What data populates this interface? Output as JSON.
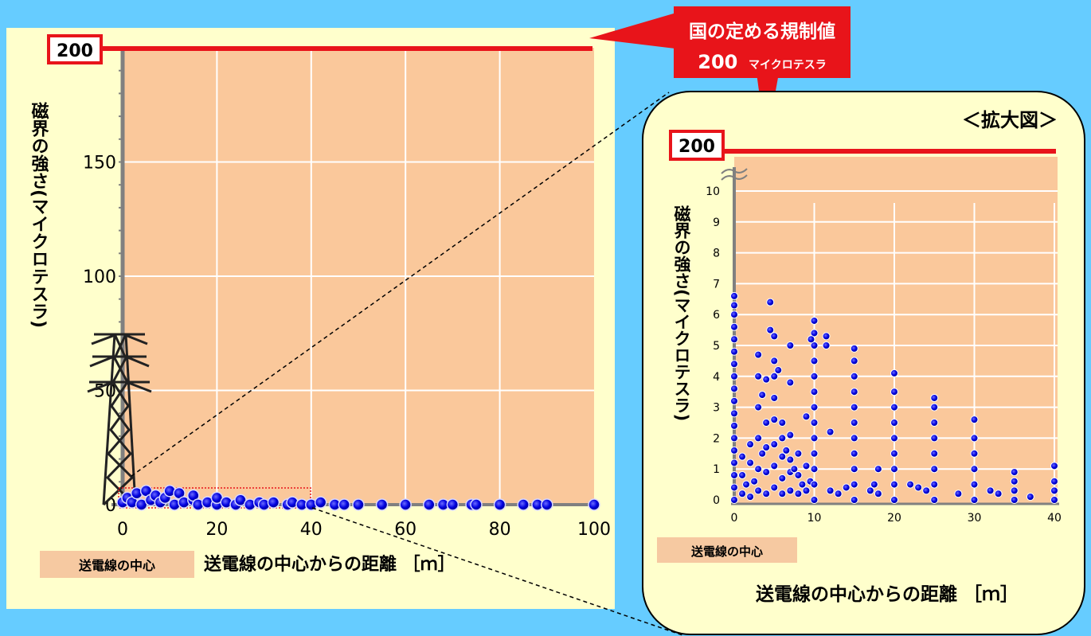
{
  "colors": {
    "background": "#66ccff",
    "panel": "#ffffcc",
    "plot_area": "#fac89b",
    "limit_line": "#e8141a",
    "point": "#0000e0",
    "callout": "#e8141a",
    "center_label_bg": "#f6c9a1"
  },
  "callout": {
    "line1": "国の定める規制値",
    "line2_value": "200",
    "line2_unit": "マイクロテスラ"
  },
  "center_label": "送電線の中心",
  "chart_data": [
    {
      "type": "scatter",
      "panel": "main",
      "title": "",
      "xlabel": "送電線の中心からの距離 ［ｍ］",
      "ylabel": "磁界の強さ(マイクロテスラ)",
      "xlim": [
        0,
        100
      ],
      "ylim": [
        0,
        200
      ],
      "x_ticks": [
        "0",
        "20",
        "40",
        "60",
        "80",
        "100"
      ],
      "y_ticks": [
        "0",
        "50",
        "100",
        "150",
        "200"
      ],
      "limit_value": 200,
      "limit_label": "200",
      "icons": [
        "transmission-tower-icon"
      ],
      "points": [
        {
          "x": 0,
          "y": 1
        },
        {
          "x": 1,
          "y": 3
        },
        {
          "x": 2,
          "y": 1
        },
        {
          "x": 3,
          "y": 5
        },
        {
          "x": 4,
          "y": 0
        },
        {
          "x": 5,
          "y": 6
        },
        {
          "x": 6,
          "y": 2
        },
        {
          "x": 7,
          "y": 4
        },
        {
          "x": 8,
          "y": 1
        },
        {
          "x": 9,
          "y": 3
        },
        {
          "x": 10,
          "y": 6
        },
        {
          "x": 11,
          "y": 0
        },
        {
          "x": 12,
          "y": 5
        },
        {
          "x": 13,
          "y": 1
        },
        {
          "x": 15,
          "y": 2
        },
        {
          "x": 15,
          "y": 4
        },
        {
          "x": 16,
          "y": 0
        },
        {
          "x": 18,
          "y": 1
        },
        {
          "x": 20,
          "y": 0
        },
        {
          "x": 20,
          "y": 3
        },
        {
          "x": 22,
          "y": 1
        },
        {
          "x": 24,
          "y": 0
        },
        {
          "x": 25,
          "y": 2
        },
        {
          "x": 27,
          "y": 0
        },
        {
          "x": 29,
          "y": 1
        },
        {
          "x": 30,
          "y": 0
        },
        {
          "x": 32,
          "y": 1
        },
        {
          "x": 35,
          "y": 0
        },
        {
          "x": 36,
          "y": 1
        },
        {
          "x": 38,
          "y": 0
        },
        {
          "x": 40,
          "y": 0
        },
        {
          "x": 42,
          "y": 1
        },
        {
          "x": 45,
          "y": 0
        },
        {
          "x": 47,
          "y": 0
        },
        {
          "x": 50,
          "y": 0
        },
        {
          "x": 55,
          "y": 0
        },
        {
          "x": 60,
          "y": 0
        },
        {
          "x": 65,
          "y": 0
        },
        {
          "x": 68,
          "y": 0
        },
        {
          "x": 70,
          "y": 0
        },
        {
          "x": 74,
          "y": 0
        },
        {
          "x": 75,
          "y": 0
        },
        {
          "x": 80,
          "y": 0
        },
        {
          "x": 85,
          "y": 0
        },
        {
          "x": 88,
          "y": 0
        },
        {
          "x": 90,
          "y": 0
        },
        {
          "x": 100,
          "y": 0
        }
      ]
    },
    {
      "type": "scatter",
      "panel": "zoom",
      "title": "＜拡大図＞",
      "xlabel": "送電線の中心からの距離 ［ｍ］",
      "ylabel": "磁界の強さ(マイクロテスラ)",
      "xlim": [
        0,
        40
      ],
      "ylim": [
        0,
        10
      ],
      "x_ticks": [
        "0",
        "10",
        "20",
        "30",
        "40"
      ],
      "y_ticks": [
        "0",
        "1",
        "2",
        "3",
        "4",
        "5",
        "6",
        "7",
        "8",
        "9",
        "10"
      ],
      "limit_value": 200,
      "limit_label": "200",
      "axis_break": true,
      "points": [
        {
          "x": 0,
          "y": 0
        },
        {
          "x": 0,
          "y": 0.4
        },
        {
          "x": 0,
          "y": 0.8
        },
        {
          "x": 0,
          "y": 1.2
        },
        {
          "x": 0,
          "y": 1.6
        },
        {
          "x": 0,
          "y": 2.0
        },
        {
          "x": 0,
          "y": 2.4
        },
        {
          "x": 0,
          "y": 2.8
        },
        {
          "x": 0,
          "y": 3.2
        },
        {
          "x": 0,
          "y": 3.6
        },
        {
          "x": 0,
          "y": 4.0
        },
        {
          "x": 0,
          "y": 4.4
        },
        {
          "x": 0,
          "y": 4.8
        },
        {
          "x": 0,
          "y": 5.2
        },
        {
          "x": 0,
          "y": 5.6
        },
        {
          "x": 0,
          "y": 6.0
        },
        {
          "x": 0,
          "y": 6.3
        },
        {
          "x": 0,
          "y": 6.6
        },
        {
          "x": 1,
          "y": 0.2
        },
        {
          "x": 1,
          "y": 0.8
        },
        {
          "x": 1,
          "y": 1.4
        },
        {
          "x": 1.5,
          "y": 0.5
        },
        {
          "x": 2,
          "y": 0.1
        },
        {
          "x": 2,
          "y": 1.2
        },
        {
          "x": 2,
          "y": 1.8
        },
        {
          "x": 2.5,
          "y": 0.6
        },
        {
          "x": 3,
          "y": 0.3
        },
        {
          "x": 3,
          "y": 1.0
        },
        {
          "x": 3,
          "y": 2.0
        },
        {
          "x": 3,
          "y": 3.0
        },
        {
          "x": 3,
          "y": 4.0
        },
        {
          "x": 3,
          "y": 4.7
        },
        {
          "x": 3.5,
          "y": 1.5
        },
        {
          "x": 3.5,
          "y": 3.4
        },
        {
          "x": 4,
          "y": 0.2
        },
        {
          "x": 4,
          "y": 0.9
        },
        {
          "x": 4,
          "y": 1.7
        },
        {
          "x": 4,
          "y": 2.5
        },
        {
          "x": 4,
          "y": 3.9
        },
        {
          "x": 4.5,
          "y": 6.4
        },
        {
          "x": 4.5,
          "y": 5.5
        },
        {
          "x": 5,
          "y": 0.4
        },
        {
          "x": 5,
          "y": 1.1
        },
        {
          "x": 5,
          "y": 1.8
        },
        {
          "x": 5,
          "y": 2.6
        },
        {
          "x": 5,
          "y": 3.3
        },
        {
          "x": 5,
          "y": 4.0
        },
        {
          "x": 5,
          "y": 4.5
        },
        {
          "x": 5,
          "y": 5.3
        },
        {
          "x": 5.5,
          "y": 4.2
        },
        {
          "x": 6,
          "y": 0.2
        },
        {
          "x": 6,
          "y": 0.7
        },
        {
          "x": 6,
          "y": 1.4
        },
        {
          "x": 6,
          "y": 2.0
        },
        {
          "x": 6,
          "y": 2.5
        },
        {
          "x": 6.5,
          "y": 1.6
        },
        {
          "x": 7,
          "y": 0.3
        },
        {
          "x": 7,
          "y": 0.9
        },
        {
          "x": 7,
          "y": 1.3
        },
        {
          "x": 7,
          "y": 2.1
        },
        {
          "x": 7,
          "y": 3.8
        },
        {
          "x": 7,
          "y": 5.0
        },
        {
          "x": 7.5,
          "y": 1.0
        },
        {
          "x": 8,
          "y": 0.2
        },
        {
          "x": 8,
          "y": 0.8
        },
        {
          "x": 8,
          "y": 1.5
        },
        {
          "x": 8.5,
          "y": 0.5
        },
        {
          "x": 9,
          "y": 0.3
        },
        {
          "x": 9,
          "y": 1.1
        },
        {
          "x": 9,
          "y": 2.7
        },
        {
          "x": 9.5,
          "y": 0.6
        },
        {
          "x": 10,
          "y": 0
        },
        {
          "x": 10,
          "y": 0.5
        },
        {
          "x": 10,
          "y": 1.0
        },
        {
          "x": 10,
          "y": 1.5
        },
        {
          "x": 10,
          "y": 2.0
        },
        {
          "x": 10,
          "y": 2.5
        },
        {
          "x": 10,
          "y": 3.0
        },
        {
          "x": 10,
          "y": 3.5
        },
        {
          "x": 10,
          "y": 4.0
        },
        {
          "x": 10,
          "y": 4.5
        },
        {
          "x": 10,
          "y": 5.0
        },
        {
          "x": 10,
          "y": 5.4
        },
        {
          "x": 10,
          "y": 5.8
        },
        {
          "x": 9.6,
          "y": 5.2
        },
        {
          "x": 11.5,
          "y": 5.3
        },
        {
          "x": 11.5,
          "y": 5.0
        },
        {
          "x": 12,
          "y": 2.2
        },
        {
          "x": 12,
          "y": 0.3
        },
        {
          "x": 13,
          "y": 0.2
        },
        {
          "x": 14,
          "y": 0.4
        },
        {
          "x": 15,
          "y": 0
        },
        {
          "x": 15,
          "y": 0.5
        },
        {
          "x": 15,
          "y": 1.0
        },
        {
          "x": 15,
          "y": 1.5
        },
        {
          "x": 15,
          "y": 2.0
        },
        {
          "x": 15,
          "y": 2.5
        },
        {
          "x": 15,
          "y": 3.0
        },
        {
          "x": 15,
          "y": 3.5
        },
        {
          "x": 15,
          "y": 4.0
        },
        {
          "x": 15,
          "y": 4.5
        },
        {
          "x": 15,
          "y": 4.9
        },
        {
          "x": 17,
          "y": 0.3
        },
        {
          "x": 17.5,
          "y": 0.5
        },
        {
          "x": 18,
          "y": 1.0
        },
        {
          "x": 18,
          "y": 0.2
        },
        {
          "x": 20,
          "y": 0
        },
        {
          "x": 20,
          "y": 0.5
        },
        {
          "x": 20,
          "y": 1.0
        },
        {
          "x": 20,
          "y": 1.5
        },
        {
          "x": 20,
          "y": 2.0
        },
        {
          "x": 20,
          "y": 2.5
        },
        {
          "x": 20,
          "y": 3.0
        },
        {
          "x": 20,
          "y": 3.5
        },
        {
          "x": 20,
          "y": 4.1
        },
        {
          "x": 22,
          "y": 0.5
        },
        {
          "x": 23,
          "y": 0.4
        },
        {
          "x": 24,
          "y": 0.3
        },
        {
          "x": 25,
          "y": 0
        },
        {
          "x": 25,
          "y": 0.5
        },
        {
          "x": 25,
          "y": 1.0
        },
        {
          "x": 25,
          "y": 1.5
        },
        {
          "x": 25,
          "y": 2.0
        },
        {
          "x": 25,
          "y": 2.5
        },
        {
          "x": 25,
          "y": 3.0
        },
        {
          "x": 25,
          "y": 3.3
        },
        {
          "x": 28,
          "y": 0.2
        },
        {
          "x": 30,
          "y": 0
        },
        {
          "x": 30,
          "y": 0.5
        },
        {
          "x": 30,
          "y": 1.0
        },
        {
          "x": 30,
          "y": 1.5
        },
        {
          "x": 30,
          "y": 2.0
        },
        {
          "x": 30,
          "y": 2.6
        },
        {
          "x": 32,
          "y": 0.3
        },
        {
          "x": 33,
          "y": 0.2
        },
        {
          "x": 35,
          "y": 0
        },
        {
          "x": 35,
          "y": 0.3
        },
        {
          "x": 35,
          "y": 0.6
        },
        {
          "x": 35,
          "y": 0.9
        },
        {
          "x": 37,
          "y": 0.1
        },
        {
          "x": 40,
          "y": 0
        },
        {
          "x": 40,
          "y": 0.3
        },
        {
          "x": 40,
          "y": 0.6
        },
        {
          "x": 40,
          "y": 1.1
        }
      ]
    }
  ]
}
